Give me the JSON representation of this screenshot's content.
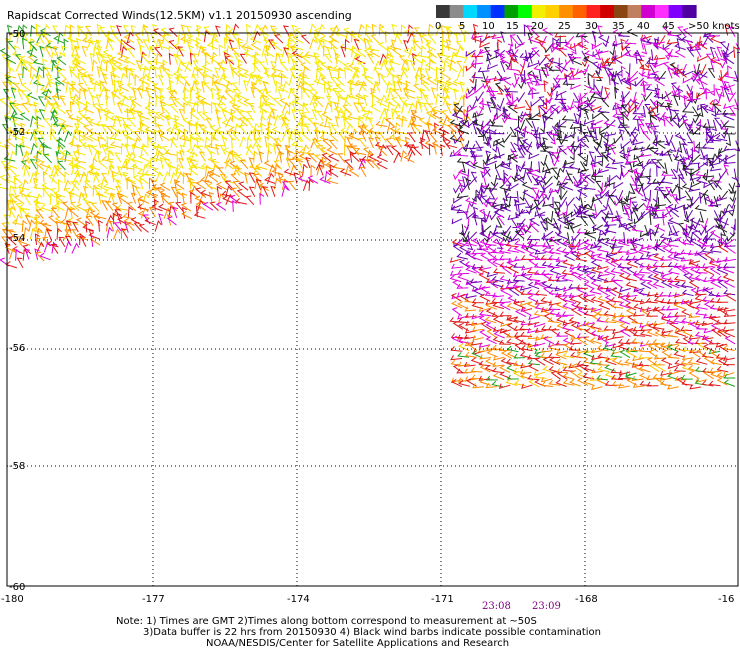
{
  "title": "Rapidscat Corrected Winds(12.5KM) v1.1 20150930 ascending",
  "legend": {
    "unit_label": ">50 knots",
    "tick_labels": [
      "0",
      "5",
      "10",
      "15",
      "20",
      "25",
      "30",
      "35",
      "40",
      "45"
    ],
    "colors": [
      "#383838",
      "#8c8c8c",
      "#00d8ff",
      "#0090ff",
      "#0030ff",
      "#00a000",
      "#00ff00",
      "#f0f000",
      "#ffd000",
      "#ff9000",
      "#ff6000",
      "#ff2020",
      "#d00000",
      "#8b4513",
      "#c08060",
      "#d000d0",
      "#ff30ff",
      "#8000ff",
      "#5000a0"
    ]
  },
  "map": {
    "lon_labels": [
      "-180",
      "-177",
      "-174",
      "-171",
      "-168",
      "-16"
    ],
    "lat_labels": [
      "-50",
      "-52",
      "-54",
      "-56",
      "-58",
      "-60"
    ],
    "time_labels": [
      "23:08",
      "23:09"
    ],
    "barb_colors": {
      "green": "#1fa31f",
      "yellow": "#f6e800",
      "yellow_orange": "#ffc800",
      "orange": "#ff8c00",
      "red": "#e11818",
      "magenta": "#e000e0",
      "purple": "#6a00b0",
      "black": "#202020"
    }
  },
  "notes": {
    "line1": "Note: 1) Times are GMT 2)Times along bottom correspond to measurement at ~50S",
    "line2": "3)Data buffer is 22 hrs from 20150930 4) Black wind barbs indicate possible contamination",
    "line3": "NOAA/NESDIS/Center for Satellite Applications and Research"
  }
}
